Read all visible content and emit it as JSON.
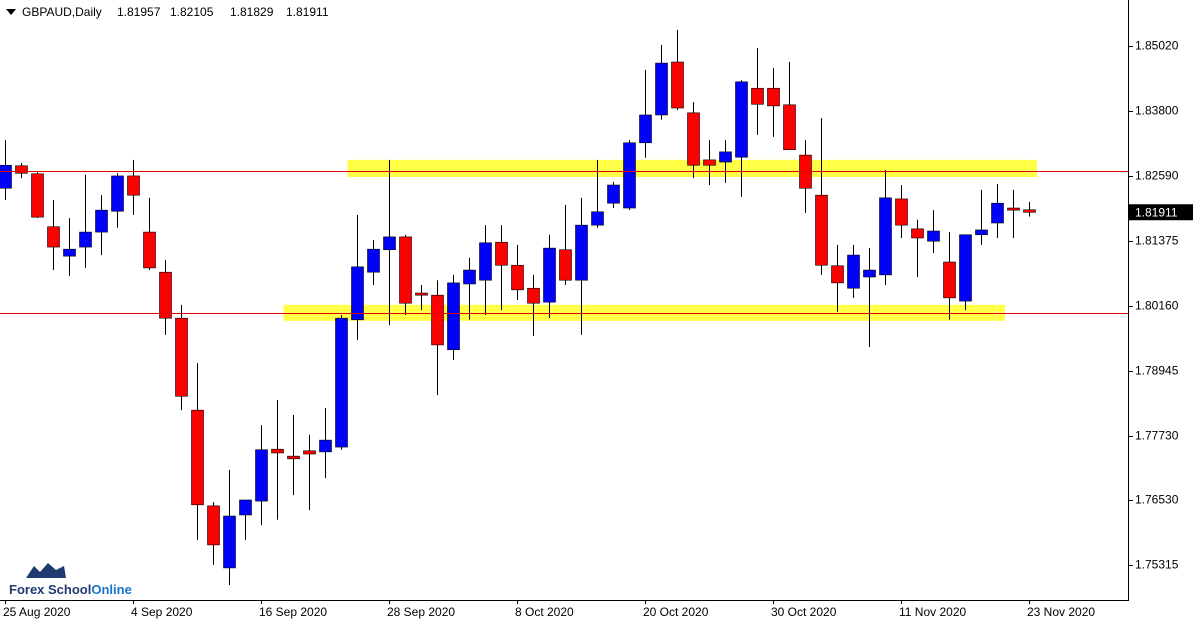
{
  "chart_data": {
    "type": "candlestick",
    "symbol": "GBPAUD,Daily",
    "categories": [
      "25 Aug 2020",
      null,
      null,
      null,
      null,
      null,
      null,
      null,
      "4 Sep 2020",
      null,
      null,
      null,
      null,
      null,
      null,
      null,
      "16 Sep 2020",
      null,
      null,
      null,
      null,
      null,
      null,
      null,
      "28 Sep 2020",
      null,
      null,
      null,
      null,
      null,
      null,
      null,
      "8 Oct 2020",
      null,
      null,
      null,
      null,
      null,
      null,
      null,
      "20 Oct 2020",
      null,
      null,
      null,
      null,
      null,
      null,
      null,
      "30 Oct 2020",
      null,
      null,
      null,
      null,
      null,
      null,
      null,
      "11 Nov 2020",
      null,
      null,
      null,
      null,
      null,
      null,
      null,
      "23 Nov 2020"
    ],
    "open": [
      1.8236,
      1.8278,
      1.8263,
      1.8164,
      1.8109,
      1.8126,
      1.8154,
      1.8193,
      1.8259,
      1.8154,
      1.8079,
      1.7993,
      1.7821,
      1.7642,
      1.7526,
      1.7625,
      1.7651,
      1.7748,
      1.7735,
      1.7745,
      1.7743,
      1.7752,
      1.799,
      1.8079,
      1.8121,
      1.8145,
      1.804,
      1.8036,
      1.7934,
      1.8057,
      1.8064,
      1.8135,
      1.8092,
      1.8049,
      1.8023,
      1.8121,
      1.8064,
      1.8167,
      1.8208,
      1.8199,
      1.8321,
      1.8373,
      1.8472,
      1.8377,
      1.8289,
      1.8285,
      1.8294,
      1.8423,
      1.8423,
      1.8392,
      1.8298,
      1.8223,
      1.8091,
      1.8049,
      1.807,
      1.8074,
      1.8216,
      1.816,
      1.8137,
      1.8098,
      1.8025,
      1.8149,
      1.8171,
      1.8199,
      1.81957
    ],
    "high": [
      1.8326,
      1.8283,
      1.8266,
      1.8214,
      1.818,
      1.8261,
      1.8223,
      1.8264,
      1.8289,
      1.8218,
      1.8102,
      1.8018,
      1.7909,
      1.7649,
      1.7709,
      1.7653,
      1.7793,
      1.784,
      1.7812,
      1.7775,
      1.7825,
      1.7999,
      1.8186,
      1.8139,
      1.8289,
      1.8149,
      1.8055,
      1.8064,
      1.8074,
      1.8106,
      1.8167,
      1.8167,
      1.813,
      1.8074,
      1.8149,
      1.8205,
      1.8218,
      1.8289,
      1.8248,
      1.8326,
      1.8457,
      1.8504,
      1.8532,
      1.8397,
      1.8326,
      1.8326,
      1.8438,
      1.8498,
      1.8461,
      1.8472,
      1.8326,
      1.8367,
      1.813,
      1.813,
      1.8124,
      1.827,
      1.8242,
      1.8177,
      1.8195,
      1.8154,
      1.8149,
      1.8233,
      1.8244,
      1.8233,
      1.82105
    ],
    "low": [
      1.8214,
      1.8255,
      1.818,
      1.8083,
      1.8072,
      1.8087,
      1.8111,
      1.8162,
      1.8186,
      1.8083,
      1.7962,
      1.7821,
      1.7578,
      1.7532,
      1.7494,
      1.7578,
      1.7606,
      1.7616,
      1.7662,
      1.7634,
      1.7694,
      1.7747,
      1.7952,
      1.8055,
      1.798,
      1.7999,
      1.8008,
      1.7849,
      1.7915,
      1.799,
      1.7999,
      1.8008,
      1.8027,
      1.796,
      1.7993,
      1.8055,
      1.7962,
      1.8162,
      1.8199,
      1.8195,
      1.8293,
      1.8364,
      1.8382,
      1.8255,
      1.8242,
      1.8246,
      1.822,
      1.8336,
      1.8332,
      1.8308,
      1.819,
      1.8074,
      1.8005,
      1.8031,
      1.7939,
      1.8055,
      1.8143,
      1.807,
      1.8115,
      1.799,
      1.8008,
      1.813,
      1.8143,
      1.8143,
      1.81829
    ],
    "close": [
      1.8279,
      1.8264,
      1.8182,
      1.8126,
      1.8122,
      1.8154,
      1.8195,
      1.8259,
      1.8223,
      1.8087,
      1.7993,
      1.7847,
      1.7644,
      1.7569,
      1.7623,
      1.7653,
      1.7747,
      1.7741,
      1.773,
      1.7739,
      1.7765,
      1.7993,
      1.8089,
      1.8122,
      1.8145,
      1.8021,
      1.8036,
      1.7943,
      1.8059,
      1.8083,
      1.8134,
      1.8092,
      1.8046,
      1.8021,
      1.8124,
      1.8064,
      1.8167,
      1.8192,
      1.8242,
      1.8321,
      1.8373,
      1.847,
      1.8386,
      1.8279,
      1.8279,
      1.8304,
      1.8435,
      1.8393,
      1.839,
      1.8308,
      1.8236,
      1.8092,
      1.8059,
      1.8111,
      1.8083,
      1.8218,
      1.8167,
      1.8143,
      1.8156,
      1.8031,
      1.8149,
      1.8158,
      1.8208,
      1.8195,
      1.81911
    ],
    "up_color": "#0000ff",
    "down_color": "#ff0000",
    "ylim": [
      1.7466,
      1.8588
    ],
    "yticks": [
      {
        "value": 1.8502,
        "label": "1.85020"
      },
      {
        "value": 1.838,
        "label": "1.83800"
      },
      {
        "value": 1.8259,
        "label": "1.82590"
      },
      1.81375,
      {
        "value": 1.8016,
        "label": "1.80160"
      },
      1.78945,
      {
        "value": 1.7773,
        "label": "1.77730"
      },
      {
        "value": 1.7653,
        "label": "1.76530"
      },
      1.75315
    ],
    "horizontal_lines": [
      1.8268,
      1.8003
    ],
    "zones": [
      {
        "price_range": [
          1.8257,
          1.8289
        ],
        "bar_range": [
          21.4,
          64.5
        ]
      },
      {
        "price_range": [
          1.7988,
          1.8018
        ],
        "bar_range": [
          17.4,
          62.5
        ]
      }
    ],
    "logo": [
      "Forex School",
      "Online"
    ]
  }
}
